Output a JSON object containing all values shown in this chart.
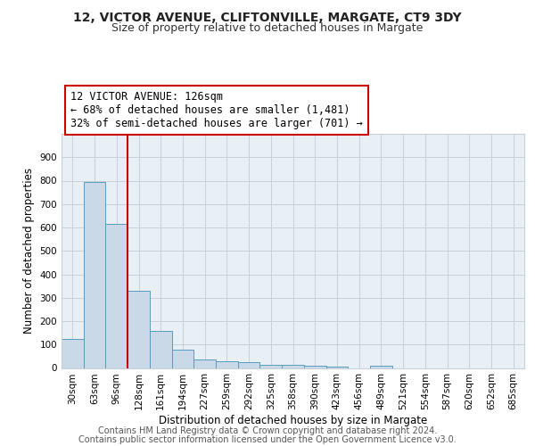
{
  "title_line1": "12, VICTOR AVENUE, CLIFTONVILLE, MARGATE, CT9 3DY",
  "title_line2": "Size of property relative to detached houses in Margate",
  "xlabel": "Distribution of detached houses by size in Margate",
  "ylabel": "Number of detached properties",
  "categories": [
    "30sqm",
    "63sqm",
    "96sqm",
    "128sqm",
    "161sqm",
    "194sqm",
    "227sqm",
    "259sqm",
    "292sqm",
    "325sqm",
    "358sqm",
    "390sqm",
    "423sqm",
    "456sqm",
    "489sqm",
    "521sqm",
    "554sqm",
    "587sqm",
    "620sqm",
    "652sqm",
    "685sqm"
  ],
  "values": [
    125,
    795,
    615,
    330,
    160,
    78,
    38,
    27,
    24,
    15,
    12,
    8,
    7,
    0,
    10,
    0,
    0,
    0,
    0,
    0,
    0
  ],
  "bar_color": "#c9d9e8",
  "bar_edge_color": "#5a9bbf",
  "vline_color": "#cc0000",
  "annotation_text": "12 VICTOR AVENUE: 126sqm\n← 68% of detached houses are smaller (1,481)\n32% of semi-detached houses are larger (701) →",
  "annotation_box_color": "#ffffff",
  "annotation_box_edge_color": "#cc0000",
  "annotation_fontsize": 8.5,
  "ylim": [
    0,
    1000
  ],
  "yticks": [
    0,
    100,
    200,
    300,
    400,
    500,
    600,
    700,
    800,
    900,
    1000
  ],
  "footer_line1": "Contains HM Land Registry data © Crown copyright and database right 2024.",
  "footer_line2": "Contains public sector information licensed under the Open Government Licence v3.0.",
  "bg_color": "#ffffff",
  "grid_color": "#c8d0d8",
  "title_fontsize": 10,
  "subtitle_fontsize": 9,
  "axis_label_fontsize": 8.5,
  "tick_fontsize": 7.5,
  "footer_fontsize": 7
}
